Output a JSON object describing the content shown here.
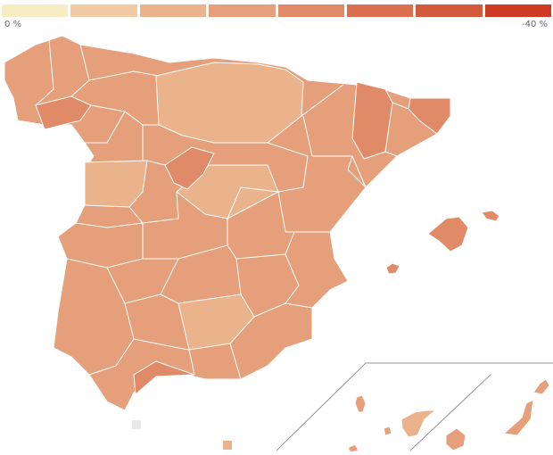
{
  "legend": {
    "colors": [
      "#f8ecc2",
      "#f0cba3",
      "#ebb38c",
      "#e59f7a",
      "#e08a68",
      "#dc6e52",
      "#d45a3e",
      "#cf3b24"
    ],
    "min_label": "0 %",
    "max_label": "-40 %"
  },
  "map": {
    "base_color": "#e59f7a",
    "border_color": "#ffffff",
    "inset_line_color": "#777777"
  },
  "key_squares": [
    {
      "color": "#e8e8e8"
    },
    {
      "color": "#ebb38c"
    }
  ]
}
